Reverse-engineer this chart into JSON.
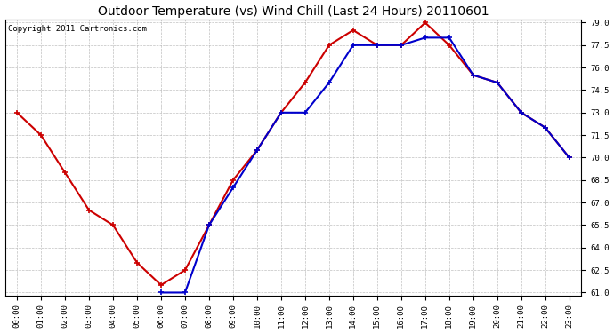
{
  "title": "Outdoor Temperature (vs) Wind Chill (Last 24 Hours) 20110601",
  "copyright_text": "Copyright 2011 Cartronics.com",
  "hours": [
    "00:00",
    "01:00",
    "02:00",
    "03:00",
    "04:00",
    "05:00",
    "06:00",
    "07:00",
    "08:00",
    "09:00",
    "10:00",
    "11:00",
    "12:00",
    "13:00",
    "14:00",
    "15:00",
    "16:00",
    "17:00",
    "18:00",
    "19:00",
    "20:00",
    "21:00",
    "22:00",
    "23:00"
  ],
  "temp": [
    73.0,
    71.5,
    69.0,
    66.5,
    65.5,
    63.0,
    61.5,
    62.5,
    65.5,
    68.5,
    70.5,
    73.0,
    75.0,
    77.5,
    78.5,
    77.5,
    77.5,
    79.0,
    77.5,
    75.5,
    75.0,
    73.0,
    72.0,
    70.0
  ],
  "wind_chill": [
    null,
    null,
    null,
    null,
    null,
    null,
    61.0,
    61.0,
    65.5,
    68.0,
    70.5,
    73.0,
    73.0,
    75.0,
    77.5,
    77.5,
    77.5,
    78.0,
    78.0,
    75.5,
    75.0,
    73.0,
    72.0,
    70.0
  ],
  "temp_color": "#cc0000",
  "wind_chill_color": "#0000cc",
  "background_color": "#ffffff",
  "plot_bg_color": "#ffffff",
  "grid_color": "#b0b0b0",
  "ylim": [
    61.0,
    79.0
  ],
  "yticks": [
    61.0,
    62.5,
    64.0,
    65.5,
    67.0,
    68.5,
    70.0,
    71.5,
    73.0,
    74.5,
    76.0,
    77.5,
    79.0
  ],
  "title_fontsize": 10,
  "copyright_fontsize": 6.5,
  "tick_fontsize": 6.5,
  "marker": "+",
  "marker_size": 5,
  "linewidth": 1.5
}
